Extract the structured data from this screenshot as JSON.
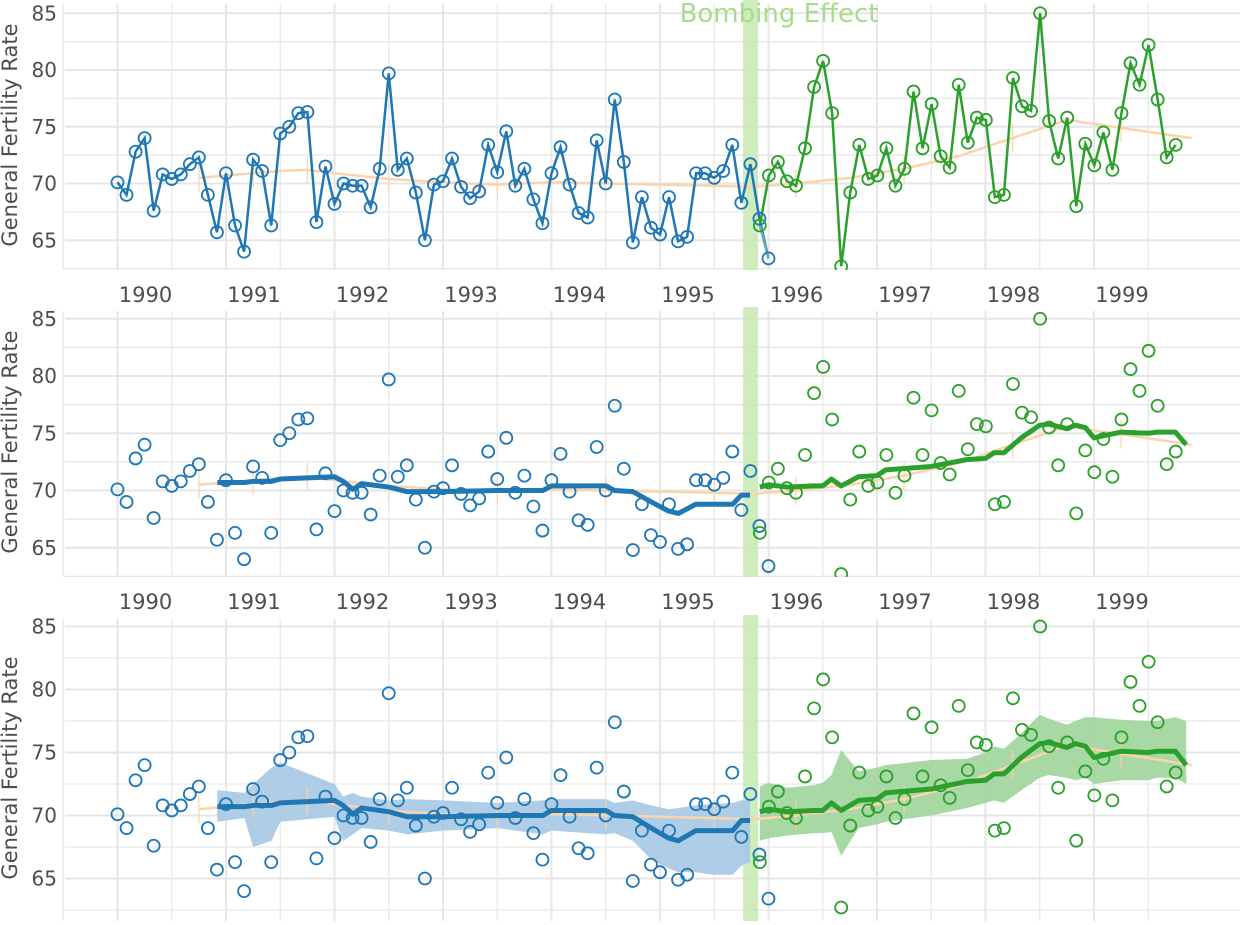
{
  "chart_data": {
    "type": "line",
    "annotation": "Bombing Effect",
    "ylabel": "General Fertility Rate",
    "xlabel": "",
    "ylim": [
      62,
      85.5
    ],
    "xlim": [
      1989.8,
      1999.95
    ],
    "yticks": [
      65,
      70,
      75,
      80,
      85
    ],
    "xticks": [
      1990,
      1991,
      1992,
      1993,
      1994,
      1995,
      1996,
      1997,
      1998,
      1999
    ],
    "xtick_labels": [
      "1990",
      "1991",
      "1992",
      "1993",
      "1994",
      "1995",
      "1996",
      "1997",
      "1998",
      "1999"
    ],
    "grid": true,
    "colors": {
      "pre": "#1f77b4",
      "post": "#2ca02c",
      "band_pre": "#a6c8e4",
      "band_post": "#9fd49a",
      "annual_trend": "#fbd3ac",
      "highlight": "#c7e9b0",
      "grid": "#e6e6e6",
      "text": "#4d4d4d",
      "annotation": "#a7dc8a"
    },
    "bombing_date": 1995.83,
    "series": {
      "pre": {
        "x_start": 1990.0,
        "step": 0.08333,
        "values": [
          70.1,
          69.0,
          72.8,
          74.0,
          67.6,
          70.8,
          70.4,
          70.8,
          71.7,
          72.3,
          69.0,
          65.7,
          70.9,
          66.3,
          64.0,
          72.1,
          71.1,
          66.3,
          74.4,
          75.0,
          76.2,
          76.3,
          66.6,
          71.5,
          68.2,
          70.0,
          69.8,
          69.8,
          67.9,
          71.3,
          79.7,
          71.2,
          72.2,
          69.2,
          65.0,
          69.9,
          70.2,
          72.2,
          69.7,
          68.7,
          69.3,
          73.4,
          71.0,
          74.6,
          69.8,
          71.3,
          68.6,
          66.5,
          70.9,
          73.2,
          69.9,
          67.4,
          67.0,
          73.8,
          70.0,
          77.4,
          71.9,
          64.8,
          68.8,
          66.1,
          65.5,
          68.8,
          64.9,
          65.3,
          70.9,
          70.9,
          70.5,
          71.1,
          73.4,
          68.3,
          71.7,
          66.9,
          63.4
        ]
      },
      "post": {
        "x_start": 1995.92,
        "step": 0.08333,
        "values": [
          66.3,
          70.7,
          71.9,
          70.2,
          69.8,
          73.1,
          78.5,
          80.8,
          76.2,
          62.7,
          69.2,
          73.4,
          70.4,
          70.7,
          73.1,
          69.8,
          71.3,
          78.1,
          73.1,
          77.0,
          72.4,
          71.4,
          78.7,
          73.6,
          75.8,
          75.6,
          68.8,
          69.0,
          79.3,
          76.8,
          76.4,
          85.0,
          75.5,
          72.2,
          75.8,
          68.0,
          73.5,
          71.6,
          74.5,
          71.2,
          76.2,
          80.6,
          78.7,
          82.2,
          77.4,
          72.3,
          73.4
        ]
      }
    },
    "trend": {
      "x": [
        1990.75,
        1991.0,
        1991.25,
        1991.5,
        1991.75,
        1992.0,
        1992.5,
        1993.0,
        1993.5,
        1994.0,
        1994.5,
        1995.0,
        1995.5,
        1995.85,
        1996.25,
        1996.75,
        1997.25,
        1997.75,
        1998.25,
        1998.75,
        1999.25,
        1999.9
      ],
      "y": [
        70.5,
        70.7,
        70.9,
        71.1,
        71.2,
        70.9,
        70.4,
        70.1,
        69.9,
        70.1,
        70.0,
        69.9,
        69.8,
        69.7,
        70.0,
        70.5,
        71.3,
        72.4,
        74.0,
        75.6,
        74.9,
        74.0
      ]
    },
    "fitted": {
      "pre": {
        "x": [
          1990.92,
          1991.17,
          1991.25,
          1991.42,
          1991.5,
          1992.0,
          1992.08,
          1992.17,
          1992.25,
          1992.5,
          1992.67,
          1993.0,
          1993.5,
          1993.92,
          1994.0,
          1994.5,
          1994.58,
          1994.75,
          1994.92,
          1995.08,
          1995.17,
          1995.33,
          1995.5,
          1995.67,
          1995.75,
          1995.83
        ],
        "y": [
          70.7,
          70.7,
          70.8,
          70.8,
          71.0,
          71.2,
          70.8,
          70.1,
          70.6,
          70.3,
          69.9,
          69.9,
          70.0,
          70.0,
          70.4,
          70.4,
          70.0,
          69.9,
          69.0,
          68.2,
          68.0,
          68.8,
          68.8,
          68.8,
          69.6,
          69.6
        ],
        "lo": [
          69.5,
          69.8,
          67.5,
          68.0,
          69.5,
          69.9,
          68.0,
          68.5,
          69.0,
          68.8,
          68.5,
          68.8,
          69.0,
          68.5,
          68.8,
          68.5,
          68.6,
          68.0,
          66.5,
          65.8,
          65.5,
          65.5,
          65.3,
          65.3,
          66.0,
          66.3
        ],
        "hi": [
          72.0,
          71.8,
          72.5,
          73.8,
          74.2,
          72.5,
          71.5,
          71.8,
          71.5,
          71.2,
          71.3,
          71.2,
          71.0,
          71.2,
          71.3,
          71.3,
          71.0,
          71.2,
          70.8,
          70.5,
          70.6,
          70.8,
          70.9,
          71.0,
          71.2,
          71.2
        ]
      },
      "post": {
        "x": [
          1995.92,
          1996.0,
          1996.17,
          1996.42,
          1996.5,
          1996.58,
          1996.67,
          1996.83,
          1997.0,
          1997.08,
          1997.5,
          1997.83,
          1998.0,
          1998.08,
          1998.17,
          1998.33,
          1998.5,
          1998.58,
          1998.75,
          1998.83,
          1998.92,
          1999.0,
          1999.25,
          1999.5,
          1999.58,
          1999.75,
          1999.85
        ],
        "y": [
          70.3,
          70.5,
          70.3,
          70.4,
          70.4,
          71.0,
          70.4,
          71.2,
          71.3,
          71.8,
          72.1,
          72.7,
          72.8,
          73.3,
          73.3,
          74.6,
          75.7,
          75.8,
          75.4,
          75.7,
          75.5,
          74.6,
          75.1,
          75.0,
          75.1,
          75.1,
          74.0
        ],
        "lo": [
          68.0,
          68.2,
          68.4,
          68.6,
          68.6,
          68.7,
          66.8,
          69.0,
          69.3,
          69.5,
          70.0,
          70.6,
          71.0,
          71.2,
          71.0,
          72.0,
          73.0,
          73.2,
          73.0,
          72.8,
          73.0,
          72.5,
          72.8,
          72.8,
          73.0,
          73.0,
          72.5
        ],
        "hi": [
          72.3,
          72.6,
          72.2,
          72.4,
          72.6,
          73.2,
          75.2,
          73.5,
          73.8,
          74.0,
          74.4,
          74.5,
          75.0,
          75.5,
          75.3,
          76.5,
          78.0,
          77.7,
          77.2,
          77.5,
          77.8,
          77.8,
          77.6,
          77.5,
          77.5,
          77.8,
          77.5
        ]
      }
    }
  }
}
